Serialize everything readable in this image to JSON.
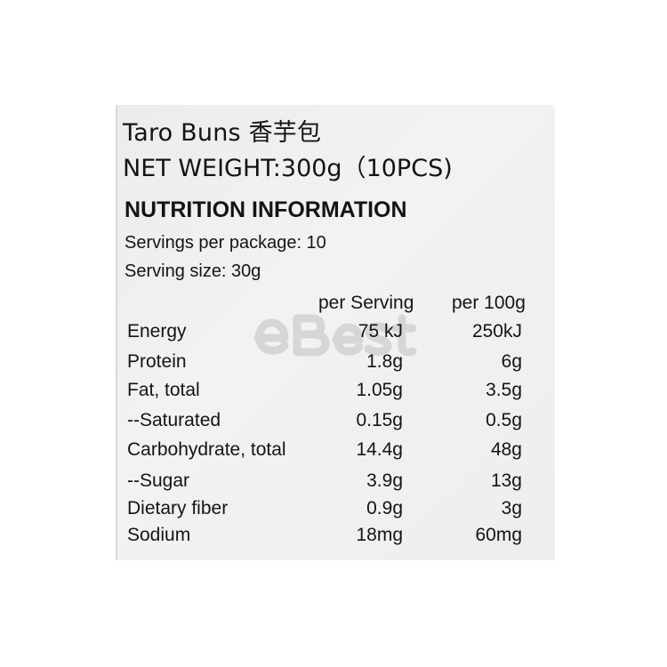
{
  "product": {
    "title": "Taro Buns 香芋包",
    "net_weight": "NET WEIGHT:300g（10PCS)"
  },
  "nutrition": {
    "heading": "NUTRITION INFORMATION",
    "servings_per_package": "Servings per package:  10",
    "serving_size": "Serving size: 30g",
    "columns": [
      "per Serving",
      "per 100g"
    ],
    "rows": [
      {
        "name": "Energy",
        "per_serving": "75 kJ",
        "per_100g": "250kJ"
      },
      {
        "name": "Protein",
        "per_serving": "1.8g",
        "per_100g": "6g"
      },
      {
        "name": "Fat, total",
        "per_serving": "1.05g",
        "per_100g": "3.5g"
      },
      {
        "name": "--Saturated",
        "per_serving": "0.15g",
        "per_100g": "0.5g"
      },
      {
        "name": "Carbohydrate, total",
        "per_serving": "14.4g",
        "per_100g": "48g"
      },
      {
        "name": "--Sugar",
        "per_serving": "3.9g",
        "per_100g": "13g"
      },
      {
        "name": "Dietary fiber",
        "per_serving": "0.9g",
        "per_100g": "3g"
      },
      {
        "name": "Sodium",
        "per_serving": "18mg",
        "per_100g": "60mg"
      }
    ]
  },
  "watermark": "eBest"
}
